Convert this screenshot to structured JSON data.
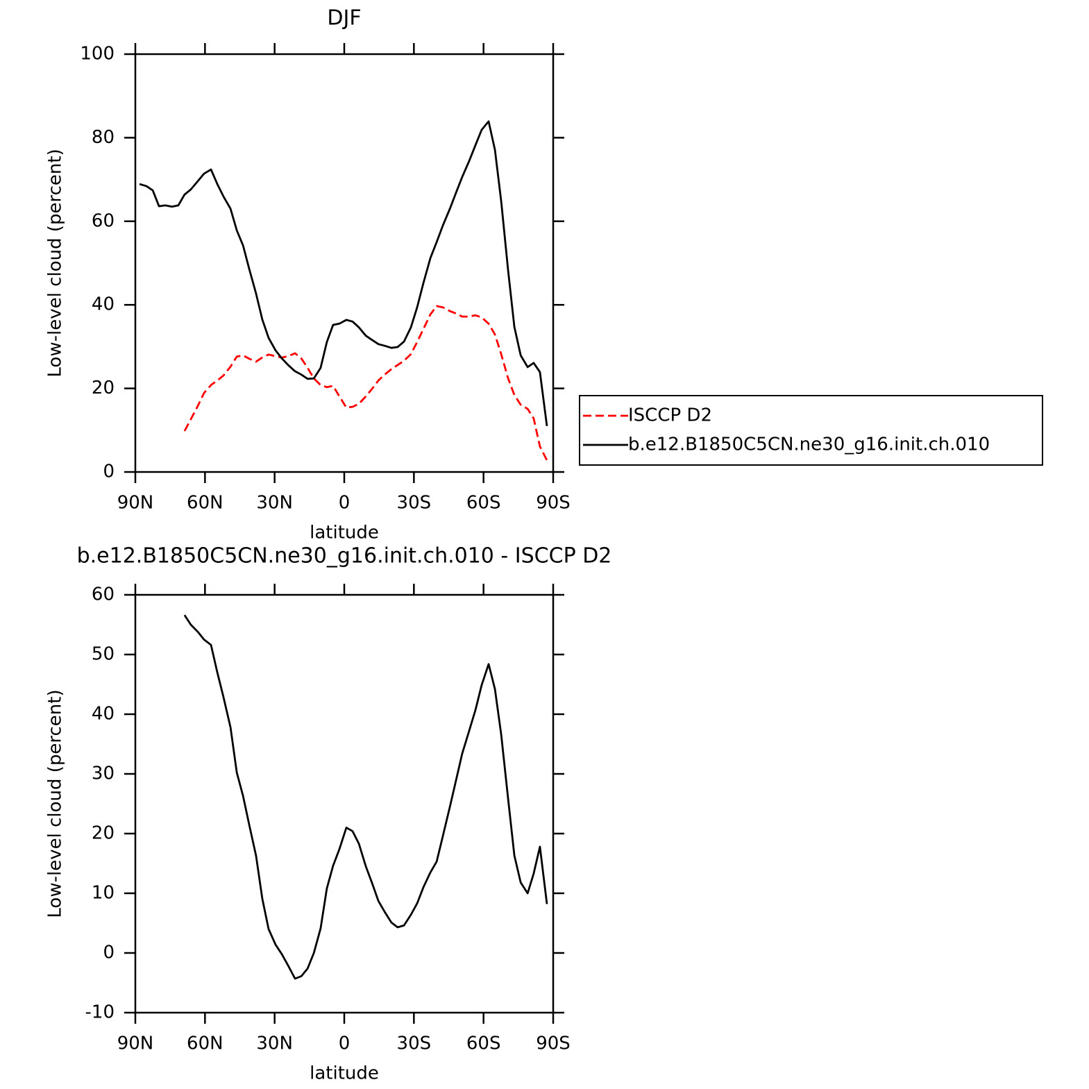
{
  "chart_data": [
    {
      "type": "line",
      "title": "DJF",
      "xlabel": "latitude",
      "ylabel": "Low-level cloud (percent)",
      "x": [
        88.2,
        85.2,
        82.5,
        79.8,
        77.1,
        74.2,
        71.5,
        68.8,
        66.1,
        63.1,
        60.4,
        57.4,
        54.7,
        52.0,
        49.0,
        46.3,
        43.6,
        40.9,
        38.0,
        35.3,
        32.6,
        29.6,
        26.9,
        24.2,
        21.2,
        18.5,
        15.8,
        13.1,
        10.2,
        7.5,
        4.8,
        2.1,
        -0.9,
        -3.6,
        -6.3,
        -9.3,
        -12.0,
        -14.7,
        -17.4,
        -20.3,
        -23.0,
        -25.7,
        -28.7,
        -31.4,
        -34.1,
        -37.1,
        -39.8,
        -42.5,
        -45.5,
        -48.2,
        -50.8,
        -53.8,
        -56.5,
        -59.2,
        -62.2,
        -64.9,
        -67.6,
        -70.6,
        -73.3,
        -76.0,
        -79.0,
        -81.6,
        -84.3,
        -87.3
      ],
      "series": [
        {
          "name": "ISCCP D2",
          "color": "#ff0000",
          "dashed": true,
          "values": [
            null,
            null,
            null,
            null,
            null,
            null,
            null,
            9.8,
            12.6,
            15.8,
            18.9,
            20.8,
            21.9,
            23.1,
            25.2,
            27.6,
            27.9,
            27.1,
            26.4,
            27.4,
            28.1,
            27.7,
            27.4,
            27.7,
            28.4,
            27.2,
            24.9,
            22.4,
            20.8,
            20.3,
            20.6,
            18.1,
            15.4,
            15.6,
            16.3,
            18.1,
            19.9,
            21.9,
            23.3,
            24.6,
            25.6,
            26.6,
            28.2,
            31.1,
            34.2,
            37.7,
            39.7,
            39.4,
            38.5,
            37.9,
            37.2,
            37.2,
            37.5,
            37.0,
            35.5,
            32.9,
            28.2,
            22.4,
            18.4,
            16.1,
            15.1,
            12.8,
            6.1,
            2.8
          ]
        },
        {
          "name": "b.e12.B1850C5CN.ne30_g16.init.ch.010",
          "color": "#000000",
          "dashed": false,
          "values": [
            68.9,
            68.4,
            67.4,
            63.6,
            63.8,
            63.5,
            63.8,
            66.4,
            67.6,
            69.6,
            71.4,
            72.4,
            68.9,
            65.9,
            63.0,
            57.8,
            54.2,
            48.5,
            42.7,
            36.5,
            32.1,
            29.1,
            27.2,
            25.6,
            24.1,
            23.3,
            22.3,
            22.4,
            24.9,
            31.1,
            35.2,
            35.5,
            36.4,
            36.0,
            34.6,
            32.6,
            31.6,
            30.6,
            30.2,
            29.7,
            29.9,
            31.2,
            34.6,
            39.4,
            45.2,
            51.2,
            55.0,
            59.0,
            63.0,
            66.9,
            70.6,
            74.4,
            78.2,
            81.9,
            83.9,
            77.1,
            64.8,
            48.2,
            34.7,
            27.9,
            25.1,
            26.1,
            23.9,
            11.0
          ]
        }
      ],
      "xlim": [
        90,
        -90
      ],
      "ylim": [
        0,
        100
      ],
      "xticks": [
        {
          "value": 90,
          "label": "90N"
        },
        {
          "value": 60,
          "label": "60N"
        },
        {
          "value": 30,
          "label": "30N"
        },
        0,
        {
          "value": -30,
          "label": "30S"
        },
        {
          "value": -60,
          "label": "60S"
        },
        {
          "value": -90,
          "label": "90S"
        }
      ],
      "yticks": [
        0,
        20,
        40,
        60,
        80,
        100
      ],
      "legend": "outside-right"
    },
    {
      "type": "line",
      "title": "b.e12.B1850C5CN.ne30_g16.init.ch.010 - ISCCP D2",
      "xlabel": "latitude",
      "ylabel": "Low-level cloud (percent)",
      "x": [
        88.2,
        85.2,
        82.5,
        79.8,
        77.1,
        74.2,
        71.5,
        68.8,
        66.1,
        63.1,
        60.4,
        57.4,
        54.7,
        52.0,
        49.0,
        46.3,
        43.6,
        40.9,
        38.0,
        35.3,
        32.6,
        29.6,
        26.9,
        24.2,
        21.2,
        18.5,
        15.8,
        13.1,
        10.2,
        7.5,
        4.8,
        2.1,
        -0.9,
        -3.6,
        -6.3,
        -9.3,
        -12.0,
        -14.7,
        -17.4,
        -20.3,
        -23.0,
        -25.7,
        -28.7,
        -31.4,
        -34.1,
        -37.1,
        -39.8,
        -42.5,
        -45.5,
        -48.2,
        -50.8,
        -53.8,
        -56.5,
        -59.2,
        -62.2,
        -64.9,
        -67.6,
        -70.6,
        -73.3,
        -76.0,
        -79.0,
        -81.6,
        -84.3,
        -87.3
      ],
      "series": [
        {
          "color": "#000000",
          "dashed": false,
          "values": [
            null,
            null,
            null,
            null,
            null,
            null,
            null,
            56.6,
            55.0,
            53.8,
            52.5,
            51.6,
            47.0,
            42.8,
            37.8,
            30.2,
            26.3,
            21.4,
            16.3,
            9.1,
            4.0,
            1.4,
            -0.2,
            -2.1,
            -4.3,
            -3.9,
            -2.6,
            0.0,
            4.1,
            10.8,
            14.6,
            17.4,
            21.0,
            20.4,
            18.3,
            14.5,
            11.7,
            8.7,
            6.9,
            5.1,
            4.3,
            4.6,
            6.4,
            8.3,
            11.0,
            13.5,
            15.3,
            19.6,
            24.5,
            29.0,
            33.4,
            37.2,
            40.7,
            44.9,
            48.4,
            44.2,
            36.6,
            25.8,
            16.3,
            11.8,
            10.0,
            13.3,
            17.8,
            8.2
          ]
        }
      ],
      "xlim": [
        90,
        -90
      ],
      "ylim": [
        -10,
        60
      ],
      "xticks": [
        {
          "value": 90,
          "label": "90N"
        },
        {
          "value": 60,
          "label": "60N"
        },
        {
          "value": 30,
          "label": "30N"
        },
        0,
        {
          "value": -30,
          "label": "30S"
        },
        {
          "value": -60,
          "label": "60S"
        },
        {
          "value": -90,
          "label": "90S"
        }
      ],
      "yticks": [
        -10,
        0,
        10,
        20,
        30,
        40,
        50,
        60
      ]
    }
  ]
}
